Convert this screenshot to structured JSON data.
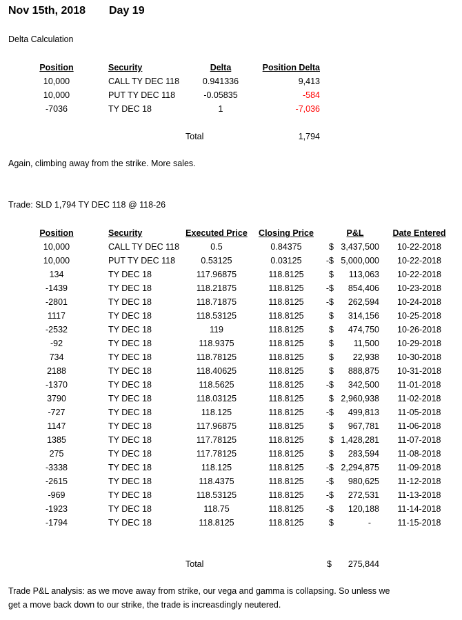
{
  "header": {
    "date": "Nov 15th, 2018",
    "day": "Day 19"
  },
  "delta_section": {
    "heading": "Delta Calculation",
    "columns": [
      "Position",
      "Security",
      "Delta",
      "Position Delta"
    ],
    "rows": [
      {
        "position": "10,000",
        "security": "CALL TY DEC 118",
        "delta": "0.941336",
        "position_delta": "9,413",
        "negative": false
      },
      {
        "position": "10,000",
        "security": "PUT TY DEC 118",
        "delta": "-0.05835",
        "position_delta": "-584",
        "negative": true
      },
      {
        "position": "-7036",
        "security": "TY DEC 18",
        "delta": "1",
        "position_delta": "-7,036",
        "negative": true
      }
    ],
    "total_label": "Total",
    "total_value": "1,794"
  },
  "comment1": "Again, climbing away from the strike.  More sales.",
  "trade_line": "Trade: SLD 1,794 TY DEC 118 @ 118-26",
  "trades": {
    "columns": [
      "Position",
      "Security",
      "Executed Price",
      "Closing Price",
      "P&L",
      "Date Entered"
    ],
    "rows": [
      {
        "position": "10,000",
        "security": "CALL TY DEC 118",
        "exec": "0.5",
        "close": "0.84375",
        "cur": "$",
        "pnl": "3,437,500",
        "date": "10-22-2018"
      },
      {
        "position": "10,000",
        "security": "PUT TY DEC 118",
        "exec": "0.53125",
        "close": "0.03125",
        "cur": "-$",
        "pnl": "5,000,000",
        "date": "10-22-2018"
      },
      {
        "position": "134",
        "security": "TY DEC 18",
        "exec": "117.96875",
        "close": "118.8125",
        "cur": "$",
        "pnl": "113,063",
        "date": "10-22-2018"
      },
      {
        "position": "-1439",
        "security": "TY DEC 18",
        "exec": "118.21875",
        "close": "118.8125",
        "cur": "-$",
        "pnl": "854,406",
        "date": "10-23-2018"
      },
      {
        "position": "-2801",
        "security": "TY DEC 18",
        "exec": "118.71875",
        "close": "118.8125",
        "cur": "-$",
        "pnl": "262,594",
        "date": "10-24-2018"
      },
      {
        "position": "1117",
        "security": "TY DEC 18",
        "exec": "118.53125",
        "close": "118.8125",
        "cur": "$",
        "pnl": "314,156",
        "date": "10-25-2018"
      },
      {
        "position": "-2532",
        "security": "TY DEC 18",
        "exec": "119",
        "close": "118.8125",
        "cur": "$",
        "pnl": "474,750",
        "date": "10-26-2018"
      },
      {
        "position": "-92",
        "security": "TY DEC 18",
        "exec": "118.9375",
        "close": "118.8125",
        "cur": "$",
        "pnl": "11,500",
        "date": "10-29-2018"
      },
      {
        "position": "734",
        "security": "TY DEC 18",
        "exec": "118.78125",
        "close": "118.8125",
        "cur": "$",
        "pnl": "22,938",
        "date": "10-30-2018"
      },
      {
        "position": "2188",
        "security": "TY DEC 18",
        "exec": "118.40625",
        "close": "118.8125",
        "cur": "$",
        "pnl": "888,875",
        "date": "10-31-2018"
      },
      {
        "position": "-1370",
        "security": "TY DEC 18",
        "exec": "118.5625",
        "close": "118.8125",
        "cur": "-$",
        "pnl": "342,500",
        "date": "11-01-2018"
      },
      {
        "position": "3790",
        "security": "TY DEC 18",
        "exec": "118.03125",
        "close": "118.8125",
        "cur": "$",
        "pnl": "2,960,938",
        "date": "11-02-2018"
      },
      {
        "position": "-727",
        "security": "TY DEC 18",
        "exec": "118.125",
        "close": "118.8125",
        "cur": "-$",
        "pnl": "499,813",
        "date": "11-05-2018"
      },
      {
        "position": "1147",
        "security": "TY DEC 18",
        "exec": "117.96875",
        "close": "118.8125",
        "cur": "$",
        "pnl": "967,781",
        "date": "11-06-2018"
      },
      {
        "position": "1385",
        "security": "TY DEC 18",
        "exec": "117.78125",
        "close": "118.8125",
        "cur": "$",
        "pnl": "1,428,281",
        "date": "11-07-2018"
      },
      {
        "position": "275",
        "security": "TY DEC 18",
        "exec": "117.78125",
        "close": "118.8125",
        "cur": "$",
        "pnl": "283,594",
        "date": "11-08-2018"
      },
      {
        "position": "-3338",
        "security": "TY DEC 18",
        "exec": "118.125",
        "close": "118.8125",
        "cur": "-$",
        "pnl": "2,294,875",
        "date": "11-09-2018"
      },
      {
        "position": "-2615",
        "security": "TY DEC 18",
        "exec": "118.4375",
        "close": "118.8125",
        "cur": "-$",
        "pnl": "980,625",
        "date": "11-12-2018"
      },
      {
        "position": "-969",
        "security": "TY DEC 18",
        "exec": "118.53125",
        "close": "118.8125",
        "cur": "-$",
        "pnl": "272,531",
        "date": "11-13-2018"
      },
      {
        "position": "-1923",
        "security": "TY DEC 18",
        "exec": "118.75",
        "close": "118.8125",
        "cur": "-$",
        "pnl": "120,188",
        "date": "11-14-2018"
      },
      {
        "position": "-1794",
        "security": "TY DEC 18",
        "exec": "118.8125",
        "close": "118.8125",
        "cur": "$",
        "pnl": "-",
        "date": "11-15-2018"
      }
    ],
    "total_label": "Total",
    "total_cur": "$",
    "total_value": "275,844"
  },
  "analysis_line1": "Trade P&L analysis: as we move away from strike, our vega and gamma is collapsing.  So unless we",
  "analysis_line2": "get a move back down to our strike, the trade is increasdingly neutered.",
  "colors": {
    "negative": "#ff0000"
  }
}
